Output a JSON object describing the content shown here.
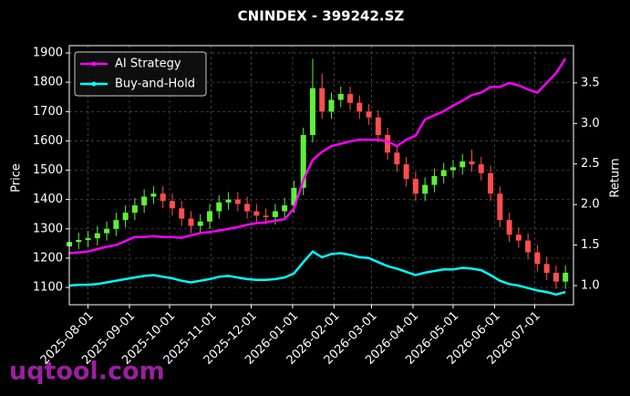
{
  "chart_data": {
    "type": "candlestick",
    "title": "CNINDEX - 399242.SZ",
    "ylabel": "Price",
    "y2label": "Return",
    "watermark": "uqtool.com",
    "x": [
      "2025-07-18",
      "2025-07-25",
      "2025-08-01",
      "2025-08-08",
      "2025-08-15",
      "2025-08-22",
      "2025-08-29",
      "2025-09-05",
      "2025-09-12",
      "2025-09-19",
      "2025-09-26",
      "2025-10-03",
      "2025-10-10",
      "2025-10-17",
      "2025-10-24",
      "2025-10-31",
      "2025-11-07",
      "2025-11-14",
      "2025-11-21",
      "2025-11-28",
      "2025-12-05",
      "2025-12-12",
      "2025-12-19",
      "2025-12-26",
      "2026-01-02",
      "2026-01-09",
      "2026-01-16",
      "2026-01-23",
      "2026-01-30",
      "2026-02-06",
      "2026-02-13",
      "2026-02-20",
      "2026-02-27",
      "2026-03-06",
      "2026-03-13",
      "2026-03-20",
      "2026-03-27",
      "2026-04-03",
      "2026-04-10",
      "2026-04-17",
      "2026-04-24",
      "2026-05-01",
      "2026-05-08",
      "2026-05-15",
      "2026-05-22",
      "2026-05-29",
      "2026-06-05",
      "2026-06-12",
      "2026-06-19",
      "2026-06-26",
      "2026-07-03",
      "2026-07-10",
      "2026-07-17",
      "2026-07-24"
    ],
    "open": [
      1240,
      1255,
      1262,
      1268,
      1285,
      1300,
      1330,
      1355,
      1380,
      1410,
      1420,
      1395,
      1370,
      1335,
      1310,
      1325,
      1360,
      1390,
      1400,
      1385,
      1360,
      1345,
      1340,
      1360,
      1380,
      1440,
      1620,
      1780,
      1700,
      1740,
      1760,
      1730,
      1700,
      1680,
      1620,
      1560,
      1520,
      1470,
      1420,
      1450,
      1480,
      1500,
      1510,
      1530,
      1520,
      1490,
      1420,
      1330,
      1280,
      1260,
      1220,
      1180,
      1150,
      1120
    ],
    "high": [
      1280,
      1287,
      1293,
      1310,
      1325,
      1355,
      1380,
      1405,
      1435,
      1445,
      1445,
      1420,
      1395,
      1360,
      1350,
      1385,
      1415,
      1425,
      1425,
      1410,
      1385,
      1370,
      1385,
      1405,
      1465,
      1645,
      1880,
      1830,
      1765,
      1785,
      1785,
      1755,
      1725,
      1705,
      1645,
      1585,
      1545,
      1495,
      1475,
      1505,
      1525,
      1535,
      1555,
      1570,
      1545,
      1515,
      1445,
      1355,
      1305,
      1285,
      1245,
      1205,
      1175,
      1175
    ],
    "low": [
      1215,
      1230,
      1237,
      1243,
      1260,
      1275,
      1305,
      1330,
      1355,
      1385,
      1370,
      1345,
      1310,
      1285,
      1285,
      1300,
      1335,
      1365,
      1360,
      1335,
      1320,
      1315,
      1315,
      1335,
      1355,
      1415,
      1595,
      1675,
      1675,
      1715,
      1705,
      1675,
      1655,
      1595,
      1535,
      1495,
      1445,
      1395,
      1395,
      1425,
      1455,
      1475,
      1485,
      1495,
      1465,
      1395,
      1305,
      1255,
      1235,
      1195,
      1155,
      1125,
      1095,
      1095
    ],
    "close": [
      1255,
      1262,
      1268,
      1285,
      1300,
      1330,
      1355,
      1380,
      1410,
      1420,
      1395,
      1370,
      1335,
      1310,
      1325,
      1360,
      1390,
      1400,
      1385,
      1360,
      1345,
      1340,
      1360,
      1380,
      1440,
      1620,
      1780,
      1700,
      1740,
      1760,
      1730,
      1700,
      1680,
      1620,
      1560,
      1520,
      1470,
      1420,
      1450,
      1480,
      1500,
      1510,
      1530,
      1520,
      1490,
      1420,
      1330,
      1280,
      1260,
      1220,
      1180,
      1150,
      1120,
      1150
    ],
    "up_color": "#5ef03a",
    "down_color": "#ff4d4d",
    "series": [
      {
        "name": "AI Strategy",
        "color": "#ff00ff",
        "axis": "y2",
        "values": [
          1.4,
          1.41,
          1.42,
          1.45,
          1.48,
          1.5,
          1.55,
          1.6,
          1.6,
          1.61,
          1.6,
          1.6,
          1.59,
          1.62,
          1.65,
          1.66,
          1.68,
          1.7,
          1.72,
          1.75,
          1.77,
          1.78,
          1.8,
          1.82,
          1.95,
          2.3,
          2.55,
          2.65,
          2.72,
          2.75,
          2.78,
          2.8,
          2.8,
          2.8,
          2.78,
          2.72,
          2.8,
          2.85,
          3.05,
          3.1,
          3.15,
          3.22,
          3.28,
          3.35,
          3.38,
          3.45,
          3.45,
          3.5,
          3.47,
          3.42,
          3.38,
          3.5,
          3.62,
          3.8
        ]
      },
      {
        "name": "Buy-and-Hold",
        "color": "#00ffff",
        "axis": "y2",
        "values": [
          1.0,
          1.01,
          1.01,
          1.02,
          1.04,
          1.06,
          1.08,
          1.1,
          1.12,
          1.13,
          1.11,
          1.09,
          1.06,
          1.04,
          1.06,
          1.08,
          1.11,
          1.12,
          1.1,
          1.08,
          1.07,
          1.07,
          1.08,
          1.1,
          1.15,
          1.29,
          1.42,
          1.35,
          1.39,
          1.4,
          1.38,
          1.35,
          1.34,
          1.29,
          1.24,
          1.21,
          1.17,
          1.13,
          1.16,
          1.18,
          1.2,
          1.2,
          1.22,
          1.21,
          1.19,
          1.13,
          1.06,
          1.02,
          1.0,
          0.97,
          0.94,
          0.92,
          0.89,
          0.92
        ]
      }
    ],
    "xlim": [
      "2025-07-18",
      "2026-07-30"
    ],
    "xticks": [
      "2025-08-01",
      "2025-09-01",
      "2025-10-01",
      "2025-11-01",
      "2025-12-01",
      "2026-01-01",
      "2026-02-01",
      "2026-03-01",
      "2026-04-01",
      "2026-05-01",
      "2026-06-01",
      "2026-07-01"
    ],
    "ylim": [
      1041,
      1925
    ],
    "yticks": [
      1100,
      1200,
      1300,
      1400,
      1500,
      1600,
      1700,
      1800,
      1900
    ],
    "y2lim": [
      0.764,
      3.96
    ],
    "y2ticks": [
      {
        "value": 1.0,
        "label": "1.0"
      },
      {
        "value": 1.5,
        "label": "1.5"
      },
      {
        "value": 2.0,
        "label": "2.0"
      },
      {
        "value": 2.5,
        "label": "2.5"
      },
      {
        "value": 3.0,
        "label": "3.0"
      },
      {
        "value": 3.5,
        "label": "3.5"
      }
    ],
    "grid": true,
    "legend": "upper left"
  }
}
